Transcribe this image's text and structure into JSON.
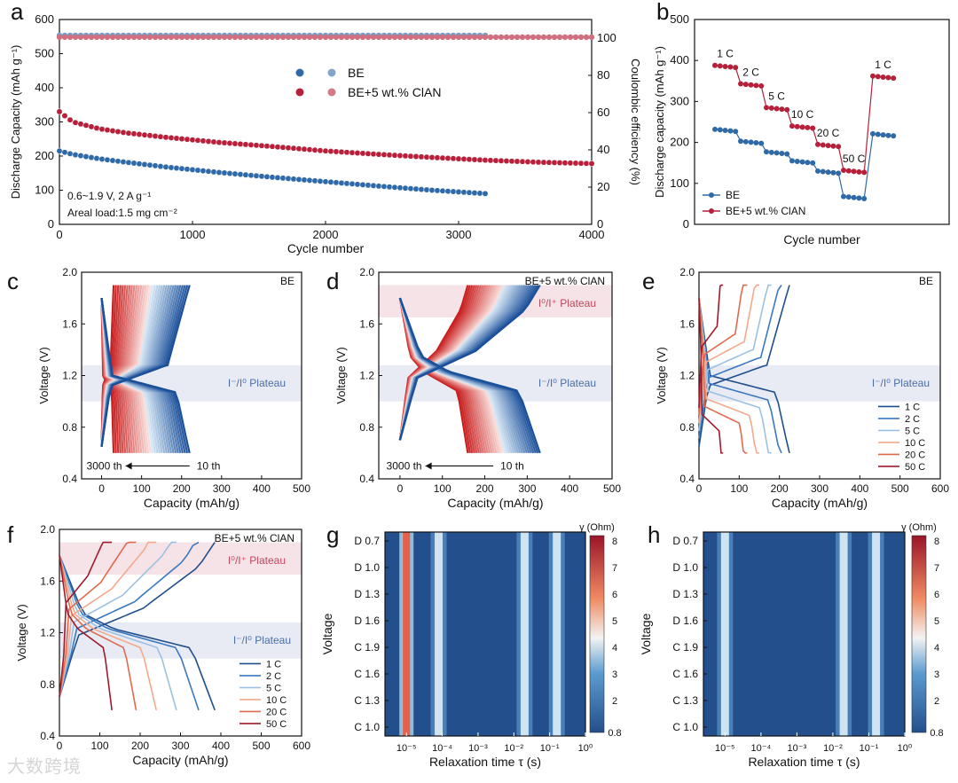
{
  "chart_data": [
    {
      "panel": "a",
      "type": "scatter",
      "xlabel": "Cycle number",
      "ylabel": "Discharge Capacity (mAh g⁻¹)",
      "y2label": "Coulombic efficiency (%)",
      "xlim": [
        0,
        4000
      ],
      "ylim": [
        0,
        600
      ],
      "y2lim": [
        0,
        110
      ],
      "xticks": [
        "0",
        "1000",
        "2000",
        "3000",
        "4000"
      ],
      "yticks": [
        "0",
        "100",
        "200",
        "300",
        "400",
        "500",
        "600"
      ],
      "y2ticks": [
        "0",
        "20",
        "40",
        "60",
        "80",
        "100"
      ],
      "legend": [
        "BE",
        "BE+5 wt.% ClAN"
      ],
      "notes": [
        "0.6~1.9 V, 2 A g⁻¹",
        "Areal load:1.5 mg cm⁻²"
      ],
      "series": [
        {
          "name": "BE",
          "color": "#2f6aa6",
          "x": [
            0,
            100,
            300,
            500,
            800,
            1200,
            1600,
            2000,
            2400,
            2800,
            3200
          ],
          "y": [
            215,
            205,
            192,
            182,
            168,
            152,
            138,
            125,
            112,
            100,
            90
          ],
          "ce": 101
        },
        {
          "name": "BE+5 wt.% ClAN",
          "color": "#b5213a",
          "x": [
            0,
            100,
            300,
            500,
            800,
            1200,
            1600,
            2000,
            2400,
            2800,
            3200,
            3600,
            4000
          ],
          "y": [
            330,
            300,
            280,
            268,
            255,
            240,
            228,
            215,
            205,
            196,
            188,
            182,
            178
          ],
          "ce": 101
        }
      ]
    },
    {
      "panel": "b",
      "type": "line",
      "xlabel": "Cycle number",
      "ylabel": "Discharge capacity (mAh g⁻¹)",
      "ylim": [
        0,
        500
      ],
      "yticks": [
        "0",
        "100",
        "200",
        "300",
        "400",
        "500"
      ],
      "rate_labels": [
        "1 C",
        "2 C",
        "5 C",
        "10 C",
        "20 C",
        "50 C",
        "1 C"
      ],
      "legend": [
        "BE",
        "BE+5 wt.% ClAN"
      ],
      "series": [
        {
          "name": "BE",
          "color": "#2f6aa6",
          "values": [
            232,
            203,
            177,
            155,
            130,
            68,
            221
          ]
        },
        {
          "name": "BE+5 wt.% ClAN",
          "color": "#b5213a",
          "values": [
            388,
            343,
            285,
            240,
            195,
            132,
            362
          ]
        }
      ]
    },
    {
      "panel": "c",
      "type": "line",
      "xlabel": "Capacity (mAh/g)",
      "ylabel": "Voltage (V)",
      "xlim": [
        -50,
        500
      ],
      "ylim": [
        0.4,
        2.0
      ],
      "label": "BE",
      "band": "I⁻/I⁰ Plateau",
      "arrow": [
        "3000 th",
        "10 th"
      ],
      "cap_range": [
        30,
        220
      ]
    },
    {
      "panel": "d",
      "type": "line",
      "xlabel": "Capacity (mAh/g)",
      "ylabel": "Voltage (V)",
      "xlim": [
        -50,
        500
      ],
      "ylim": [
        0.4,
        2.0
      ],
      "label": "BE+5 wt.% ClAN",
      "bands": [
        "I⁰/I⁺ Plateau",
        "I⁻/I⁰ Plateau"
      ],
      "arrow": [
        "3000 th",
        "10 th"
      ],
      "cap_range": [
        160,
        330
      ]
    },
    {
      "panel": "e",
      "type": "line",
      "xlabel": "Capacity (mAh/g)",
      "ylabel": "Voltage (V)",
      "xlim": [
        0,
        600
      ],
      "ylim": [
        0.4,
        2.0
      ],
      "label": "BE",
      "band": "I⁻/I⁰ Plateau",
      "legend": [
        "1 C",
        "2 C",
        "5 C",
        "10 C",
        "20 C",
        "50 C"
      ],
      "capacities": [
        225,
        205,
        180,
        150,
        120,
        60
      ]
    },
    {
      "panel": "f",
      "type": "line",
      "xlabel": "Capacity (mAh/g)",
      "ylabel": "Voltage (V)",
      "xlim": [
        0,
        600
      ],
      "ylim": [
        0.4,
        2.0
      ],
      "label": "BE+5 wt.% ClAN",
      "bands": [
        "I⁰/I⁺ Plateau",
        "I⁻/I⁰ Plateau"
      ],
      "legend": [
        "1 C",
        "2 C",
        "5 C",
        "10 C",
        "20 C",
        "50 C"
      ],
      "capacities": [
        385,
        345,
        290,
        240,
        190,
        130
      ]
    },
    {
      "panel": "g",
      "type": "heatmap",
      "xlabel": "Relaxation time τ (s)",
      "ylabel": "Voltage",
      "yticks": [
        "D 0.7",
        "D 1.0",
        "D 1.3",
        "D 1.6",
        "C 1.9",
        "C 1.6",
        "C 1.3",
        "C 1.0"
      ],
      "colorbar_label": "γ (Ohm)",
      "colorbar_ticks": [
        "0.8",
        "2",
        "3",
        "4",
        "5",
        "6",
        "7",
        "8"
      ],
      "peaks_log_tau": [
        -5,
        -4.1,
        -1.7,
        -0.8
      ]
    },
    {
      "panel": "h",
      "type": "heatmap",
      "xlabel": "Relaxation time τ (s)",
      "ylabel": "Voltage",
      "yticks": [
        "D 0.7",
        "D 1.0",
        "D 1.3",
        "D 1.6",
        "C 1.9",
        "C 1.6",
        "C 1.3",
        "C 1.0"
      ],
      "colorbar_label": "γ (Ohm)",
      "colorbar_ticks": [
        "0.8",
        "2",
        "3",
        "4",
        "5",
        "6",
        "7",
        "8"
      ],
      "peaks_log_tau": [
        -5,
        -1.7,
        -0.8
      ]
    }
  ],
  "panel_letters": [
    "a",
    "b",
    "c",
    "d",
    "e",
    "f",
    "g",
    "h"
  ],
  "watermark": "大数跨境",
  "tau_ticks": [
    "10⁻⁵",
    "10⁻⁴",
    "10⁻³",
    "10⁻²",
    "10⁻¹",
    "10⁰"
  ],
  "vticks": [
    "0.4",
    "0.8",
    "1.2",
    "1.6",
    "2.0"
  ],
  "cap_ticks_500": [
    "0",
    "100",
    "200",
    "300",
    "400",
    "500"
  ],
  "cap_ticks_600": [
    "0",
    "100",
    "200",
    "300",
    "400",
    "500",
    "600"
  ]
}
